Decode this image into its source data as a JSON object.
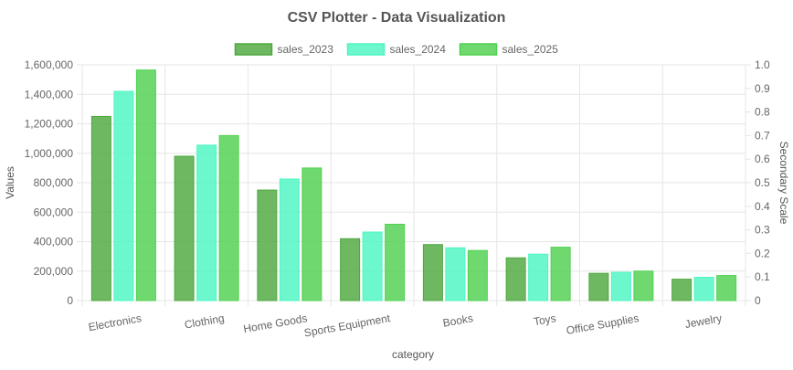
{
  "chart_data": {
    "type": "bar",
    "title": "CSV Plotter - Data Visualization",
    "xlabel": "category",
    "ylabel": "Values",
    "y2label": "Secondary Scale",
    "categories": [
      "Electronics",
      "Clothing",
      "Home Goods",
      "Sports Equipment",
      "Books",
      "Toys",
      "Office Supplies",
      "Jewelry"
    ],
    "series": [
      {
        "name": "sales_2023",
        "values": [
          1250000,
          980000,
          750000,
          420000,
          380000,
          290000,
          185000,
          145000
        ],
        "color": "#4ea83e"
      },
      {
        "name": "sales_2024",
        "values": [
          1420000,
          1055000,
          825000,
          465000,
          358000,
          315000,
          192000,
          158000
        ],
        "color": "#4df5c2"
      },
      {
        "name": "sales_2025",
        "values": [
          1565000,
          1120000,
          900000,
          518000,
          340000,
          362000,
          200000,
          170000
        ],
        "color": "#4fd14f"
      }
    ],
    "ylim": [
      0,
      1600000
    ],
    "y2lim": [
      0,
      1
    ],
    "yticks": [
      "0",
      "200,000",
      "400,000",
      "600,000",
      "800,000",
      "1,000,000",
      "1,200,000",
      "1,400,000",
      "1,600,000"
    ],
    "y2ticks": [
      "0",
      "0.1",
      "0.2",
      "0.3",
      "0.4",
      "0.5",
      "0.6",
      "0.7",
      "0.8",
      "0.9",
      "1.0"
    ],
    "legend_position": "top",
    "grid": true
  }
}
